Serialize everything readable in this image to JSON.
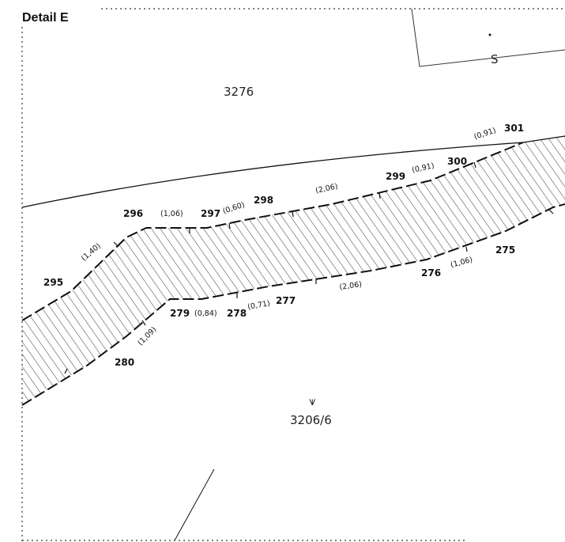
{
  "title": "Detail E",
  "parcels": {
    "north": "3276",
    "south": "3206/6",
    "south_symbol": "⩛",
    "building_letter": "S"
  },
  "points": {
    "p301": "301",
    "p300": "300",
    "p299": "299",
    "p298": "298",
    "p297": "297",
    "p296": "296",
    "p295": "295",
    "p280": "280",
    "p279": "279",
    "p278": "278",
    "p277": "277",
    "p276": "276",
    "p275": "275"
  },
  "distances": {
    "d301": "(0,91)",
    "d300": "(0,91)",
    "d299": "(2,06)",
    "d298": "(0,60)",
    "d297": "(1,06)",
    "d296": "(1,40)",
    "d280": "(1,09)",
    "d279": "(0,84)",
    "d278": "(0,71)",
    "d277": "(2,06)",
    "d276": "(1,06)"
  }
}
